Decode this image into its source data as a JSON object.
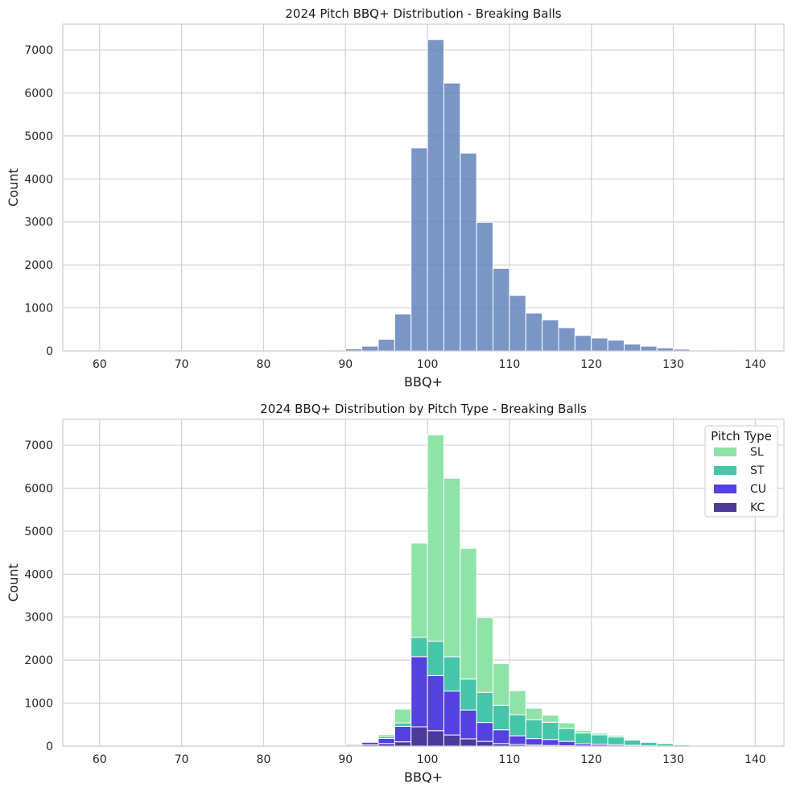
{
  "chart_data": [
    {
      "type": "bar",
      "title": "2024 Pitch BBQ+ Distribution - Breaking Balls",
      "xlabel": "BBQ+",
      "ylabel": "Count",
      "xlim": [
        55.5,
        143.5
      ],
      "ylim": [
        0,
        7600
      ],
      "xticks": [
        60,
        70,
        80,
        90,
        100,
        110,
        120,
        130,
        140
      ],
      "yticks": [
        0,
        1000,
        2000,
        3000,
        4000,
        5000,
        6000,
        7000
      ],
      "grid": true,
      "bin_start": 88,
      "bin_width": 2,
      "color": "#5b7fb8",
      "values": [
        10,
        50,
        110,
        270,
        860,
        4720,
        7240,
        6230,
        4600,
        2990,
        1920,
        1290,
        880,
        720,
        540,
        360,
        300,
        250,
        160,
        110,
        70,
        40,
        20,
        15,
        10,
        5,
        3
      ]
    },
    {
      "type": "bar",
      "title": "2024 BBQ+ Distribution by Pitch Type - Breaking Balls",
      "xlabel": "BBQ+",
      "ylabel": "Count",
      "xlim": [
        55.5,
        143.5
      ],
      "ylim": [
        0,
        7600
      ],
      "xticks": [
        60,
        70,
        80,
        90,
        100,
        110,
        120,
        130,
        140
      ],
      "yticks": [
        0,
        1000,
        2000,
        3000,
        4000,
        5000,
        6000,
        7000
      ],
      "grid": true,
      "stacked": true,
      "bin_start": 88,
      "bin_width": 2,
      "legend": {
        "title": "Pitch Type",
        "placement": "top-right"
      },
      "series": [
        {
          "name": "KC",
          "color": "#4b3a9a",
          "values": [
            0,
            10,
            30,
            60,
            100,
            450,
            360,
            260,
            170,
            110,
            60,
            40,
            25,
            15,
            10,
            5,
            3,
            2,
            0,
            0,
            0,
            0,
            0,
            0,
            0,
            0,
            0
          ]
        },
        {
          "name": "CU",
          "color": "#5540e0",
          "values": [
            5,
            25,
            60,
            120,
            360,
            1630,
            1280,
            1020,
            670,
            440,
            320,
            200,
            150,
            140,
            100,
            50,
            40,
            30,
            20,
            10,
            5,
            2,
            0,
            0,
            0,
            0,
            0
          ]
        },
        {
          "name": "ST",
          "color": "#45c6a8",
          "values": [
            3,
            10,
            20,
            50,
            80,
            450,
            800,
            800,
            720,
            700,
            570,
            490,
            440,
            400,
            300,
            250,
            220,
            180,
            120,
            80,
            55,
            30,
            15,
            10,
            5,
            3,
            2
          ]
        },
        {
          "name": "SL",
          "color": "#8fe3a6",
          "values": [
            2,
            5,
            0,
            40,
            320,
            2190,
            4800,
            4150,
            3040,
            1740,
            970,
            560,
            265,
            165,
            130,
            55,
            37,
            38,
            20,
            20,
            10,
            8,
            5,
            5,
            5,
            2,
            1
          ]
        }
      ]
    }
  ]
}
